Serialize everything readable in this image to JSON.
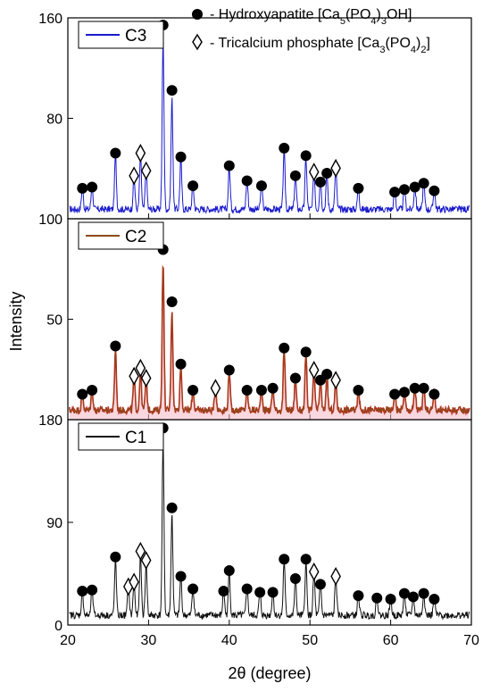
{
  "legend": {
    "items": [
      {
        "symbol": "filled-circle",
        "prefix": "- Hydroxyapatite [Ca",
        "formula_subs": [
          "5",
          "(PO",
          "4",
          ")",
          "3",
          "OH]"
        ]
      },
      {
        "symbol": "open-diamond",
        "prefix": "- Tricalcium phosphate [Ca",
        "formula_subs": [
          "3",
          "(PO",
          "4",
          ")",
          "2",
          "]"
        ]
      }
    ]
  },
  "chart_data": [
    {
      "type": "line",
      "panel": "top",
      "series_name": "C3",
      "color": "#1a1acc",
      "xlim": [
        20,
        70
      ],
      "ylim": [
        0,
        160
      ],
      "yticks": [
        "160",
        "80"
      ],
      "peaks": [
        {
          "x": 21.8,
          "y": 20
        },
        {
          "x": 23.0,
          "y": 21
        },
        {
          "x": 25.9,
          "y": 48
        },
        {
          "x": 28.2,
          "y": 30,
          "m": "d"
        },
        {
          "x": 29.0,
          "y": 48,
          "m": "d"
        },
        {
          "x": 29.7,
          "y": 34,
          "m": "d"
        },
        {
          "x": 31.8,
          "y": 150
        },
        {
          "x": 32.9,
          "y": 98
        },
        {
          "x": 34.0,
          "y": 45
        },
        {
          "x": 35.5,
          "y": 22
        },
        {
          "x": 40.0,
          "y": 38
        },
        {
          "x": 42.2,
          "y": 26
        },
        {
          "x": 44.0,
          "y": 22
        },
        {
          "x": 46.8,
          "y": 52
        },
        {
          "x": 48.2,
          "y": 30
        },
        {
          "x": 49.5,
          "y": 46
        },
        {
          "x": 50.5,
          "y": 33,
          "m": "d"
        },
        {
          "x": 51.3,
          "y": 25
        },
        {
          "x": 52.1,
          "y": 32
        },
        {
          "x": 53.2,
          "y": 36,
          "m": "d"
        },
        {
          "x": 56.0,
          "y": 20
        },
        {
          "x": 60.5,
          "y": 17
        },
        {
          "x": 61.7,
          "y": 19
        },
        {
          "x": 63.0,
          "y": 21
        },
        {
          "x": 64.1,
          "y": 24
        },
        {
          "x": 65.4,
          "y": 18
        }
      ]
    },
    {
      "type": "line",
      "panel": "middle",
      "series_name": "C2",
      "color": "#8b4a1c",
      "xlim": [
        20,
        70
      ],
      "ylim": [
        0,
        100
      ],
      "yticks": [
        "100",
        "50"
      ],
      "peaks": [
        {
          "x": 21.8,
          "y": 10
        },
        {
          "x": 23.0,
          "y": 12
        },
        {
          "x": 25.9,
          "y": 34
        },
        {
          "x": 28.2,
          "y": 19,
          "m": "d"
        },
        {
          "x": 29.0,
          "y": 23,
          "m": "d"
        },
        {
          "x": 29.7,
          "y": 18,
          "m": "d"
        },
        {
          "x": 31.8,
          "y": 82
        },
        {
          "x": 32.9,
          "y": 56
        },
        {
          "x": 34.0,
          "y": 25
        },
        {
          "x": 35.5,
          "y": 12
        },
        {
          "x": 38.3,
          "y": 13,
          "m": "d"
        },
        {
          "x": 40.0,
          "y": 22
        },
        {
          "x": 42.2,
          "y": 12
        },
        {
          "x": 44.0,
          "y": 12
        },
        {
          "x": 45.4,
          "y": 13
        },
        {
          "x": 46.8,
          "y": 33
        },
        {
          "x": 48.2,
          "y": 18
        },
        {
          "x": 49.5,
          "y": 31
        },
        {
          "x": 50.5,
          "y": 22,
          "m": "d"
        },
        {
          "x": 51.3,
          "y": 17
        },
        {
          "x": 52.1,
          "y": 20
        },
        {
          "x": 53.2,
          "y": 17,
          "m": "d"
        },
        {
          "x": 56.0,
          "y": 12
        },
        {
          "x": 60.5,
          "y": 10
        },
        {
          "x": 61.7,
          "y": 11
        },
        {
          "x": 63.0,
          "y": 13
        },
        {
          "x": 64.1,
          "y": 13
        },
        {
          "x": 65.4,
          "y": 10
        }
      ]
    },
    {
      "type": "line",
      "panel": "bottom",
      "series_name": "C1",
      "color": "#111111",
      "xlim": [
        20,
        70
      ],
      "ylim": [
        0,
        180
      ],
      "yticks": [
        "180",
        "90",
        "0"
      ],
      "xticks": [
        "20",
        "30",
        "40",
        "50",
        "60",
        "70"
      ],
      "xlabel": "2θ (degree)",
      "ylabel": "Intensity",
      "peaks": [
        {
          "x": 21.8,
          "y": 25
        },
        {
          "x": 23.0,
          "y": 26
        },
        {
          "x": 25.9,
          "y": 55
        },
        {
          "x": 27.5,
          "y": 29,
          "m": "d"
        },
        {
          "x": 28.2,
          "y": 33,
          "m": "d"
        },
        {
          "x": 29.0,
          "y": 60,
          "m": "d"
        },
        {
          "x": 29.7,
          "y": 52,
          "m": "d"
        },
        {
          "x": 31.8,
          "y": 168
        },
        {
          "x": 32.9,
          "y": 98
        },
        {
          "x": 34.0,
          "y": 38
        },
        {
          "x": 35.5,
          "y": 27
        },
        {
          "x": 39.3,
          "y": 25
        },
        {
          "x": 40.0,
          "y": 43
        },
        {
          "x": 42.2,
          "y": 27
        },
        {
          "x": 43.8,
          "y": 24
        },
        {
          "x": 45.4,
          "y": 24
        },
        {
          "x": 46.8,
          "y": 53
        },
        {
          "x": 48.2,
          "y": 36
        },
        {
          "x": 49.5,
          "y": 53
        },
        {
          "x": 50.5,
          "y": 42,
          "m": "d"
        },
        {
          "x": 51.3,
          "y": 31
        },
        {
          "x": 53.2,
          "y": 38,
          "m": "d"
        },
        {
          "x": 56.0,
          "y": 21
        },
        {
          "x": 58.3,
          "y": 19
        },
        {
          "x": 60.0,
          "y": 18
        },
        {
          "x": 61.7,
          "y": 23
        },
        {
          "x": 62.8,
          "y": 20
        },
        {
          "x": 64.1,
          "y": 23
        },
        {
          "x": 65.4,
          "y": 18
        }
      ]
    }
  ]
}
